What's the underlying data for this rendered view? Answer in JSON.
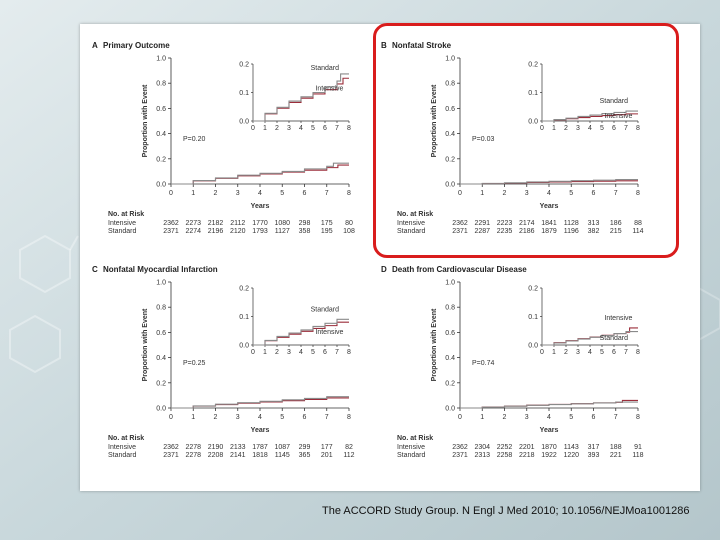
{
  "colors": {
    "intensive": "#9b2d3a",
    "standard": "#8a8a8a",
    "annotation": "#d91c1c",
    "background": "#c7d6da"
  },
  "citation": "The ACCORD Study Group. N Engl J Med 2010; 10.1056/NEJMoa1001286",
  "chart_data": [
    {
      "type": "line",
      "panel_letter": "A",
      "title": "Primary Outcome",
      "xlabel": "Years",
      "ylabel": "Proportion with Event",
      "xlim": [
        0,
        8
      ],
      "ylim": [
        0,
        1.0
      ],
      "x_ticks": [
        "0",
        "1",
        "2",
        "3",
        "4",
        "5",
        "6",
        "7",
        "8"
      ],
      "y_ticks": [
        "0.0",
        "0.2",
        "0.4",
        "0.6",
        "0.8",
        "1.0"
      ],
      "p_value": "P=0.20",
      "inset": {
        "ylim": [
          0,
          0.2
        ],
        "y_ticks": [
          "0.0",
          "0.1",
          "0.2"
        ],
        "x_ticks": [
          "0",
          "1",
          "2",
          "3",
          "4",
          "5",
          "6",
          "7",
          "8"
        ],
        "label_standard": "Standard",
        "label_intensive": "Intensive"
      },
      "series": [
        {
          "name": "Intensive",
          "x": [
            0,
            1,
            2,
            3,
            4,
            5,
            6,
            7,
            7.5,
            8
          ],
          "y": [
            0,
            0.025,
            0.045,
            0.065,
            0.08,
            0.095,
            0.11,
            0.13,
            0.15,
            0.15
          ]
        },
        {
          "name": "Standard",
          "x": [
            0,
            1,
            2,
            3,
            4,
            5,
            6,
            7,
            7.3,
            8
          ],
          "y": [
            0,
            0.027,
            0.048,
            0.07,
            0.085,
            0.1,
            0.12,
            0.14,
            0.165,
            0.165
          ]
        }
      ],
      "risk_table": {
        "header": "No. at Risk",
        "rows": [
          {
            "label": "Intensive",
            "values": [
              "2362",
              "2273",
              "2182",
              "2112",
              "1770",
              "1080",
              "298",
              "175",
              "80"
            ]
          },
          {
            "label": "Standard",
            "values": [
              "2371",
              "2274",
              "2196",
              "2120",
              "1793",
              "1127",
              "358",
              "195",
              "108"
            ]
          }
        ]
      }
    },
    {
      "type": "line",
      "panel_letter": "B",
      "title": "Nonfatal Stroke",
      "xlabel": "Years",
      "ylabel": "Proportion with Event",
      "xlim": [
        0,
        8
      ],
      "ylim": [
        0,
        1.0
      ],
      "x_ticks": [
        "0",
        "1",
        "2",
        "3",
        "4",
        "5",
        "6",
        "7",
        "8"
      ],
      "y_ticks": [
        "0.0",
        "0.2",
        "0.4",
        "0.6",
        "0.8",
        "1.0"
      ],
      "p_value": "P=0.03",
      "inset": {
        "ylim": [
          0,
          0.2
        ],
        "y_ticks": [
          "0.0",
          "0.1",
          "0.2"
        ],
        "x_ticks": [
          "0",
          "1",
          "2",
          "3",
          "4",
          "5",
          "6",
          "7",
          "8"
        ],
        "label_standard": "Standard",
        "label_intensive": "Intensive"
      },
      "series": [
        {
          "name": "Intensive",
          "x": [
            0,
            1,
            2,
            3,
            4,
            5,
            6,
            7,
            8
          ],
          "y": [
            0,
            0.004,
            0.008,
            0.012,
            0.016,
            0.019,
            0.022,
            0.025,
            0.025
          ]
        },
        {
          "name": "Standard",
          "x": [
            0,
            1,
            2,
            3,
            4,
            5,
            6,
            7,
            8
          ],
          "y": [
            0,
            0.005,
            0.01,
            0.016,
            0.021,
            0.026,
            0.03,
            0.035,
            0.035
          ]
        }
      ],
      "risk_table": {
        "header": "No. at Risk",
        "rows": [
          {
            "label": "Intensive",
            "values": [
              "2362",
              "2291",
              "2223",
              "2174",
              "1841",
              "1128",
              "313",
              "186",
              "88"
            ]
          },
          {
            "label": "Standard",
            "values": [
              "2371",
              "2287",
              "2235",
              "2186",
              "1879",
              "1196",
              "382",
              "215",
              "114"
            ]
          }
        ]
      }
    },
    {
      "type": "line",
      "panel_letter": "C",
      "title": "Nonfatal Myocardial Infarction",
      "xlabel": "Years",
      "ylabel": "Proportion with Event",
      "xlim": [
        0,
        8
      ],
      "ylim": [
        0,
        1.0
      ],
      "x_ticks": [
        "0",
        "1",
        "2",
        "3",
        "4",
        "5",
        "6",
        "7",
        "8"
      ],
      "y_ticks": [
        "0.0",
        "0.2",
        "0.4",
        "0.6",
        "0.8",
        "1.0"
      ],
      "p_value": "P=0.25",
      "inset": {
        "ylim": [
          0,
          0.2
        ],
        "y_ticks": [
          "0.0",
          "0.1",
          "0.2"
        ],
        "x_ticks": [
          "0",
          "1",
          "2",
          "3",
          "4",
          "5",
          "6",
          "7",
          "8"
        ],
        "label_standard": "Standard",
        "label_intensive": "Intensive"
      },
      "series": [
        {
          "name": "Intensive",
          "x": [
            0,
            1,
            2,
            3,
            4,
            5,
            6,
            7,
            8
          ],
          "y": [
            0,
            0.015,
            0.027,
            0.038,
            0.048,
            0.058,
            0.068,
            0.08,
            0.08
          ]
        },
        {
          "name": "Standard",
          "x": [
            0,
            1,
            2,
            3,
            4,
            5,
            6,
            7,
            8
          ],
          "y": [
            0,
            0.016,
            0.03,
            0.042,
            0.053,
            0.065,
            0.076,
            0.09,
            0.09
          ]
        }
      ],
      "risk_table": {
        "header": "No. at Risk",
        "rows": [
          {
            "label": "Intensive",
            "values": [
              "2362",
              "2278",
              "2190",
              "2133",
              "1787",
              "1087",
              "299",
              "177",
              "82"
            ]
          },
          {
            "label": "Standard",
            "values": [
              "2371",
              "2278",
              "2208",
              "2141",
              "1818",
              "1145",
              "365",
              "201",
              "112"
            ]
          }
        ]
      }
    },
    {
      "type": "line",
      "panel_letter": "D",
      "title": "Death from Cardiovascular Disease",
      "xlabel": "Years",
      "ylabel": "Proportion with Event",
      "xlim": [
        0,
        8
      ],
      "ylim": [
        0,
        1.0
      ],
      "x_ticks": [
        "0",
        "1",
        "2",
        "3",
        "4",
        "5",
        "6",
        "7",
        "8"
      ],
      "y_ticks": [
        "0.0",
        "0.2",
        "0.4",
        "0.6",
        "0.8",
        "1.0"
      ],
      "p_value": "P=0.74",
      "inset": {
        "ylim": [
          0,
          0.2
        ],
        "y_ticks": [
          "0.0",
          "0.1",
          "0.2"
        ],
        "x_ticks": [
          "0",
          "1",
          "2",
          "3",
          "4",
          "5",
          "6",
          "7",
          "8"
        ],
        "label_standard": "Standard",
        "label_intensive": "Intensive"
      },
      "series": [
        {
          "name": "Intensive",
          "x": [
            0,
            1,
            2,
            3,
            4,
            5,
            6,
            7,
            7.3,
            8
          ],
          "y": [
            0,
            0.008,
            0.015,
            0.022,
            0.028,
            0.034,
            0.04,
            0.045,
            0.06,
            0.06
          ]
        },
        {
          "name": "Standard",
          "x": [
            0,
            1,
            2,
            3,
            4,
            5,
            6,
            7,
            8
          ],
          "y": [
            0,
            0.007,
            0.014,
            0.021,
            0.027,
            0.033,
            0.04,
            0.047,
            0.047
          ]
        }
      ],
      "risk_table": {
        "header": "No. at Risk",
        "rows": [
          {
            "label": "Intensive",
            "values": [
              "2362",
              "2304",
              "2252",
              "2201",
              "1870",
              "1143",
              "317",
              "188",
              "91"
            ]
          },
          {
            "label": "Standard",
            "values": [
              "2371",
              "2313",
              "2258",
              "2218",
              "1922",
              "1220",
              "393",
              "221",
              "118"
            ]
          }
        ]
      }
    }
  ]
}
